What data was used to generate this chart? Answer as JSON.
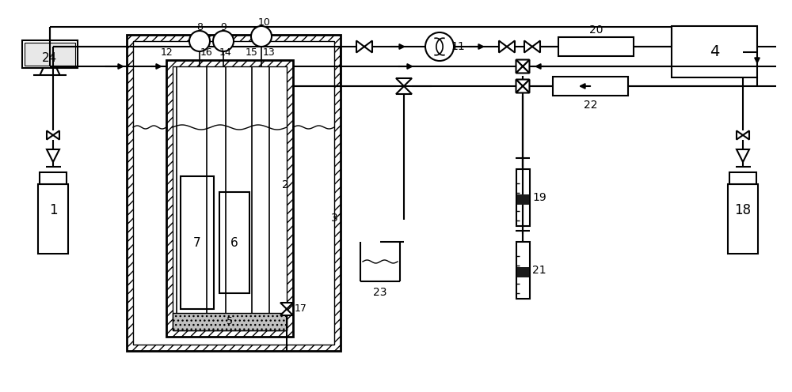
{
  "bg_color": "#ffffff",
  "figsize": [
    10.0,
    4.96
  ],
  "dpi": 100,
  "lw": 1.5
}
